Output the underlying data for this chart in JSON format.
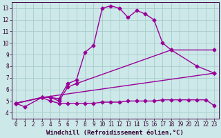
{
  "bg_color": "#cce8e8",
  "grid_color": "#aacccc",
  "line_color": "#990099",
  "xlim": [
    -0.5,
    23.5
  ],
  "ylim": [
    3.5,
    13.5
  ],
  "xticks": [
    0,
    1,
    2,
    3,
    4,
    5,
    6,
    7,
    8,
    9,
    10,
    11,
    12,
    13,
    14,
    15,
    16,
    17,
    18,
    19,
    20,
    21,
    22,
    23
  ],
  "yticks": [
    4,
    5,
    6,
    7,
    8,
    9,
    10,
    11,
    12,
    13
  ],
  "series": [
    {
      "x": [
        0,
        1,
        3,
        4,
        5,
        6,
        7,
        8,
        9,
        10,
        11,
        12,
        13,
        14,
        15,
        16,
        17,
        18,
        21,
        23
      ],
      "y": [
        4.8,
        4.5,
        5.3,
        5.3,
        5.2,
        6.5,
        6.8,
        9.2,
        9.8,
        13.0,
        13.2,
        13.0,
        12.2,
        12.8,
        12.5,
        12.0,
        10.0,
        9.4,
        8.0,
        7.4
      ]
    },
    {
      "x": [
        0,
        3,
        4,
        5,
        6,
        7,
        18,
        23
      ],
      "y": [
        4.8,
        5.3,
        5.3,
        5.0,
        6.2,
        6.5,
        9.4,
        9.4
      ]
    },
    {
      "x": [
        0,
        3,
        4,
        5,
        6,
        7,
        8,
        9,
        10,
        11,
        12,
        13,
        14,
        15,
        16,
        17,
        18,
        19,
        20,
        21,
        22,
        23
      ],
      "y": [
        4.8,
        5.3,
        5.0,
        4.8,
        4.8,
        4.8,
        4.8,
        4.8,
        4.9,
        4.9,
        4.9,
        5.0,
        5.0,
        5.0,
        5.0,
        5.1,
        5.1,
        5.1,
        5.1,
        5.1,
        5.1,
        4.6
      ]
    },
    {
      "x": [
        0,
        3,
        23
      ],
      "y": [
        4.8,
        5.3,
        7.4
      ]
    }
  ],
  "marker": "D",
  "markersize": 2.5,
  "linewidth": 1.0,
  "xlabel": "Windchill (Refroidissement éolien,°C)",
  "xlabel_fontsize": 6.5,
  "tick_fontsize": 5.5
}
